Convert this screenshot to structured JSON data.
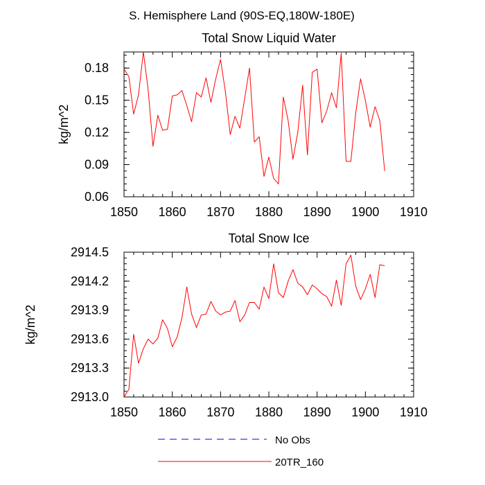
{
  "figure_title": "S. Hemisphere Land (90S-EQ,180W-180E)",
  "legend": [
    {
      "label": "No Obs",
      "color": "#0000ff",
      "dash": "dashed"
    },
    {
      "label": "20TR_160",
      "color": "#ff0000",
      "dash": "solid"
    }
  ],
  "chart_data": [
    {
      "type": "line",
      "title": "Total Snow Liquid Water",
      "xlabel": "",
      "ylabel": "kg/m^2",
      "xlim": [
        1850,
        1910
      ],
      "ylim": [
        0.06,
        0.195
      ],
      "xticks": [
        1850,
        1860,
        1870,
        1880,
        1890,
        1900,
        1910
      ],
      "yticks": [
        0.06,
        0.09,
        0.12,
        0.15,
        0.18
      ],
      "ytick_labels": [
        "0.06",
        "0.09",
        "0.12",
        "0.15",
        "0.18"
      ],
      "x": [
        1850,
        1851,
        1852,
        1853,
        1854,
        1855,
        1856,
        1857,
        1858,
        1859,
        1860,
        1861,
        1862,
        1863,
        1864,
        1865,
        1866,
        1867,
        1868,
        1869,
        1870,
        1871,
        1872,
        1873,
        1874,
        1875,
        1876,
        1877,
        1878,
        1879,
        1880,
        1881,
        1882,
        1883,
        1884,
        1885,
        1886,
        1887,
        1888,
        1889,
        1890,
        1891,
        1892,
        1893,
        1894,
        1895,
        1896,
        1897,
        1898,
        1899,
        1900,
        1901,
        1902,
        1903,
        1904
      ],
      "series": [
        {
          "name": "20TR_160",
          "color": "#ff0000",
          "values": [
            0.179,
            0.172,
            0.137,
            0.155,
            0.195,
            0.16,
            0.107,
            0.136,
            0.122,
            0.123,
            0.154,
            0.155,
            0.159,
            0.145,
            0.13,
            0.157,
            0.153,
            0.171,
            0.148,
            0.17,
            0.188,
            0.158,
            0.118,
            0.135,
            0.124,
            0.152,
            0.18,
            0.111,
            0.116,
            0.079,
            0.097,
            0.077,
            0.072,
            0.153,
            0.131,
            0.095,
            0.12,
            0.164,
            0.099,
            0.176,
            0.179,
            0.129,
            0.14,
            0.157,
            0.143,
            0.194,
            0.093,
            0.093,
            0.138,
            0.17,
            0.15,
            0.125,
            0.144,
            0.131,
            0.084
          ]
        }
      ]
    },
    {
      "type": "line",
      "title": "Total Snow Ice",
      "xlabel": "",
      "ylabel": "kg/m^2",
      "xlim": [
        1850,
        1910
      ],
      "ylim": [
        2913.0,
        2914.5
      ],
      "xticks": [
        1850,
        1860,
        1870,
        1880,
        1890,
        1900,
        1910
      ],
      "yticks": [
        2913.0,
        2913.3,
        2913.6,
        2913.9,
        2914.2,
        2914.5
      ],
      "ytick_labels": [
        "2913.0",
        "2913.3",
        "2913.6",
        "2913.9",
        "2914.2",
        "2914.5"
      ],
      "x": [
        1850,
        1851,
        1852,
        1853,
        1854,
        1855,
        1856,
        1857,
        1858,
        1859,
        1860,
        1861,
        1862,
        1863,
        1864,
        1865,
        1866,
        1867,
        1868,
        1869,
        1870,
        1871,
        1872,
        1873,
        1874,
        1875,
        1876,
        1877,
        1878,
        1879,
        1880,
        1881,
        1882,
        1883,
        1884,
        1885,
        1886,
        1887,
        1888,
        1889,
        1890,
        1891,
        1892,
        1893,
        1894,
        1895,
        1896,
        1897,
        1898,
        1899,
        1900,
        1901,
        1902,
        1903,
        1904
      ],
      "series": [
        {
          "name": "20TR_160",
          "color": "#ff0000",
          "values": [
            2913.0,
            2913.08,
            2913.65,
            2913.35,
            2913.5,
            2913.6,
            2913.55,
            2913.61,
            2913.8,
            2913.71,
            2913.52,
            2913.62,
            2913.82,
            2914.14,
            2913.86,
            2913.72,
            2913.85,
            2913.86,
            2913.99,
            2913.89,
            2913.85,
            2913.88,
            2913.89,
            2914.0,
            2913.78,
            2913.85,
            2913.98,
            2913.98,
            2913.91,
            2914.14,
            2914.02,
            2914.38,
            2914.08,
            2914.03,
            2914.2,
            2914.32,
            2914.18,
            2914.14,
            2914.06,
            2914.16,
            2914.12,
            2914.07,
            2914.04,
            2913.94,
            2914.21,
            2913.95,
            2914.38,
            2914.47,
            2914.15,
            2914.01,
            2914.12,
            2914.27,
            2914.03,
            2914.37,
            2914.36
          ]
        }
      ]
    }
  ]
}
